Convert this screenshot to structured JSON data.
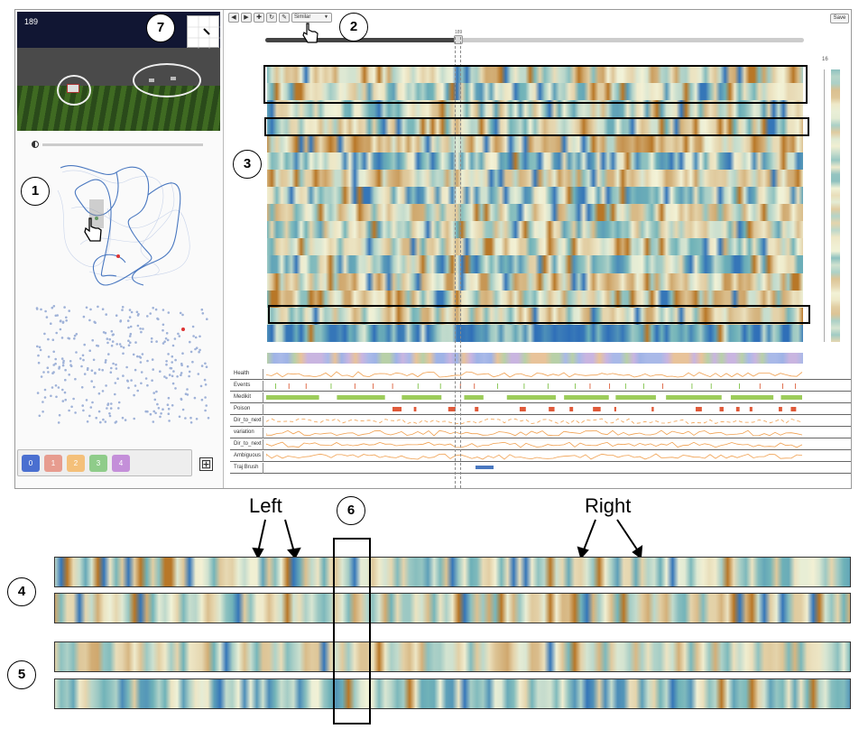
{
  "game_view": {
    "frame_number": "189"
  },
  "toolbar": {
    "buttons": [
      "◀",
      "▶",
      "✚",
      "↻",
      "✎"
    ],
    "select_value": "Similar",
    "save_label": "Save"
  },
  "time_slider": {
    "value_label": "189",
    "progress": 0.36
  },
  "row_count": "16",
  "clusters": {
    "buttons": [
      {
        "label": "0",
        "color": "#4a6fd0"
      },
      {
        "label": "1",
        "color": "#e79c8f"
      },
      {
        "label": "2",
        "color": "#f4c07a"
      },
      {
        "label": "3",
        "color": "#8fcc8a"
      },
      {
        "label": "4",
        "color": "#c48fd9"
      }
    ],
    "add_label": "⊞"
  },
  "attributes": {
    "rows": [
      "Health",
      "Events",
      "Medikit",
      "Poison",
      "Dir_to_next",
      "variation",
      "Dir_to_next",
      "Ambiguous",
      "Traj Brush"
    ]
  },
  "callouts": {
    "c1": "1",
    "c2": "2",
    "c3": "3",
    "c4": "4",
    "c5": "5",
    "c6": "6",
    "c7": "7"
  },
  "labels": {
    "left": "Left",
    "right": "Right"
  },
  "colors": {
    "brown": "#b5701e",
    "blue": "#2f6fb8",
    "pale": "#f3f3d8",
    "teal": "#6fb2b8"
  }
}
